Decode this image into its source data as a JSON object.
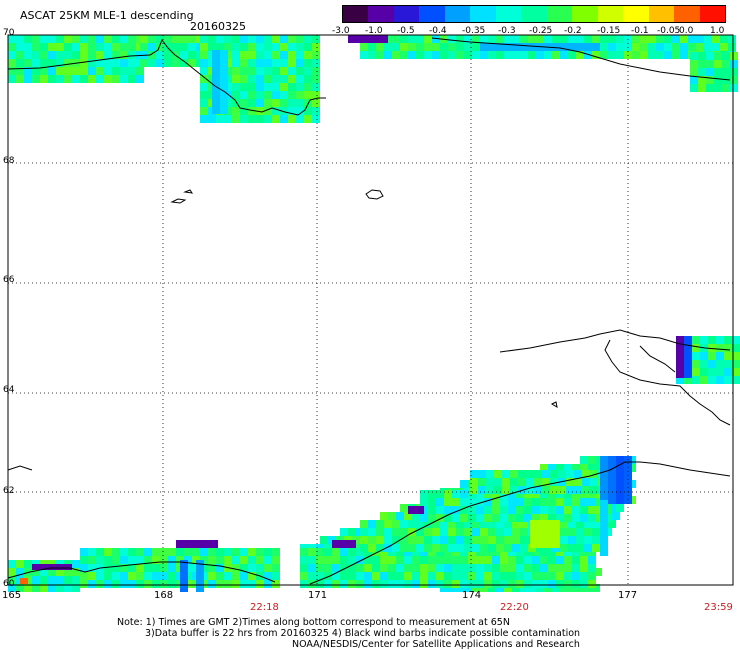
{
  "header": {
    "title": "ASCAT 25KM MLE-1 descending",
    "date": "20160325"
  },
  "colorbar": {
    "colors": [
      "#3a0044",
      "#5800a8",
      "#2a18d8",
      "#0050ff",
      "#00a0ff",
      "#00e0ff",
      "#00ffd8",
      "#00ffa0",
      "#28ff50",
      "#80ff00",
      "#d0ff00",
      "#ffff00",
      "#ffc000",
      "#ff6000",
      "#ff1000"
    ],
    "labels": [
      "-3.0",
      "-1.0",
      "-0.5",
      "-0.4",
      "-0.35",
      "-0.3",
      "-0.25",
      "-0.2",
      "-0.15",
      "-0.1",
      "-0.05",
      "0.0",
      "1.0"
    ]
  },
  "axes": {
    "lat_labels": [
      "70",
      "68",
      "66",
      "64",
      "62",
      "60"
    ],
    "lon_labels": [
      "165",
      "168",
      "171",
      "174",
      "177"
    ],
    "time_labels": [
      "22:18",
      "22:20",
      "23:59"
    ],
    "time_color": "#cc1f1f"
  },
  "notes": {
    "line1": "Note: 1) Times are GMT 2)Times along bottom correspond to measurement at 65N",
    "line2": "3)Data buffer is 22 hrs from 20160325 4) Black wind barbs indicate possible contamination",
    "line3": "NOAA/NESDIS/Center for Satellite Applications and Research"
  }
}
